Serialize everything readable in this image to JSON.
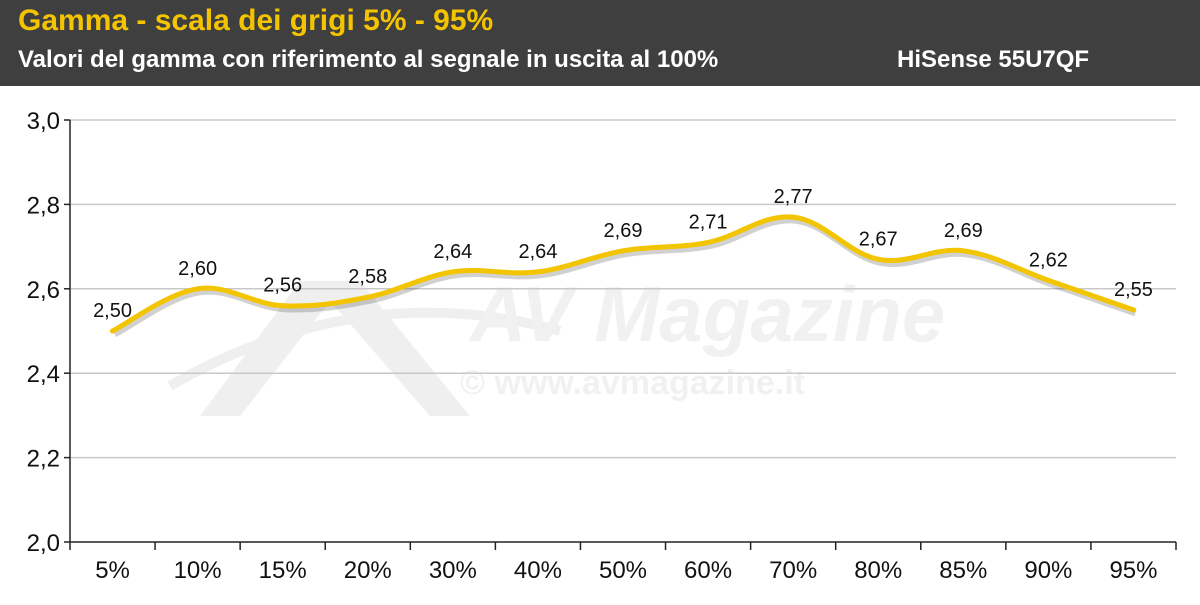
{
  "header": {
    "title": "Gamma - scala dei grigi 5% - 95%",
    "subtitle": "Valori del gamma con riferimento al segnale in uscita al 100%",
    "model": "HiSense 55U7QF"
  },
  "watermark": {
    "brand": "AV Magazine",
    "url": "© www.avmagazine.it"
  },
  "colors": {
    "header_bg": "#3f3f3f",
    "title": "#f5c400",
    "line": "#f2c500",
    "grid": "#c8c8c8"
  },
  "chart_data": {
    "type": "line",
    "title": "Gamma - scala dei grigi 5% - 95%",
    "subtitle": "Valori del gamma con riferimento al segnale in uscita al 100%",
    "categories": [
      "5%",
      "10%",
      "15%",
      "20%",
      "30%",
      "40%",
      "50%",
      "60%",
      "70%",
      "80%",
      "85%",
      "90%",
      "95%"
    ],
    "series": [
      {
        "values": [
          2.5,
          2.6,
          2.56,
          2.58,
          2.64,
          2.64,
          2.69,
          2.71,
          2.77,
          2.67,
          2.69,
          2.62,
          2.55
        ],
        "labels": [
          "2,50",
          "2,60",
          "2,56",
          "2,58",
          "2,64",
          "2,64",
          "2,69",
          "2,71",
          "2,77",
          "2,67",
          "2,69",
          "2,62",
          "2,55"
        ]
      }
    ],
    "ylim": [
      2.0,
      3.0
    ],
    "yticks": [
      2.0,
      2.2,
      2.4,
      2.6,
      2.8,
      3.0
    ],
    "ytick_labels": [
      "2,0",
      "2,2",
      "2,4",
      "2,6",
      "2,8",
      "3,0"
    ],
    "grid": true,
    "legend": "none",
    "xlabel": "",
    "ylabel": ""
  }
}
